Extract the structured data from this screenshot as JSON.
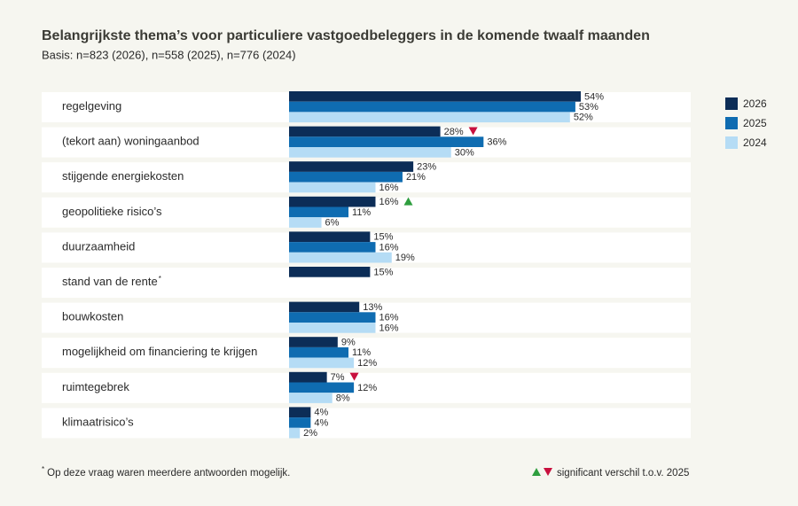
{
  "chart_data": {
    "type": "bar",
    "orientation": "horizontal",
    "title": "Belangrijkste thema’s voor particuliere vastgoedbeleggers in de komende twaalf maanden",
    "subtitle": "Basis: n=823 (2026), n=558 (2025), n=776 (2024)",
    "categories": [
      "regelgeving",
      "(tekort aan) woningaanbod",
      "stijgende energiekosten",
      "geopolitieke risico’s",
      "duurzaamheid",
      "stand van de rente",
      "bouwkosten",
      "mogelijkheid om financiering te krijgen",
      "ruimtegebrek",
      "klimaatrisico’s"
    ],
    "footnote_marks": [
      null,
      null,
      null,
      null,
      null,
      "*",
      null,
      null,
      null,
      null
    ],
    "series": [
      {
        "name": "2026",
        "color": "#0c2d57",
        "values": [
          54,
          28,
          23,
          16,
          15,
          15,
          13,
          9,
          7,
          4
        ],
        "value_labels": [
          "54%",
          "28%",
          "23%",
          "16%",
          "15%",
          "15%",
          "13%",
          "9%",
          "7%",
          "4%"
        ],
        "significance": [
          null,
          "down",
          null,
          "up",
          null,
          null,
          null,
          null,
          "down",
          null
        ]
      },
      {
        "name": "2025",
        "color": "#0f6cb1",
        "values": [
          53,
          36,
          21,
          11,
          16,
          null,
          16,
          11,
          12,
          4
        ],
        "value_labels": [
          "53%",
          "36%",
          "21%",
          "11%",
          "16%",
          null,
          "16%",
          "11%",
          "12%",
          "4%"
        ]
      },
      {
        "name": "2024",
        "color": "#b5dcf5",
        "values": [
          52,
          30,
          16,
          6,
          19,
          null,
          16,
          12,
          8,
          2
        ],
        "value_labels": [
          "52%",
          "30%",
          "16%",
          "6%",
          "19%",
          null,
          "16%",
          "12%",
          "8%",
          "2%"
        ]
      }
    ],
    "significance_colors": {
      "up": "#2e9e3e",
      "down": "#c8103e"
    },
    "footnote": {
      "marker": "*",
      "text": "Op deze vraag waren meerdere antwoorden mogelijk."
    },
    "significance_legend": "significant verschil t.o.v. 2025"
  }
}
